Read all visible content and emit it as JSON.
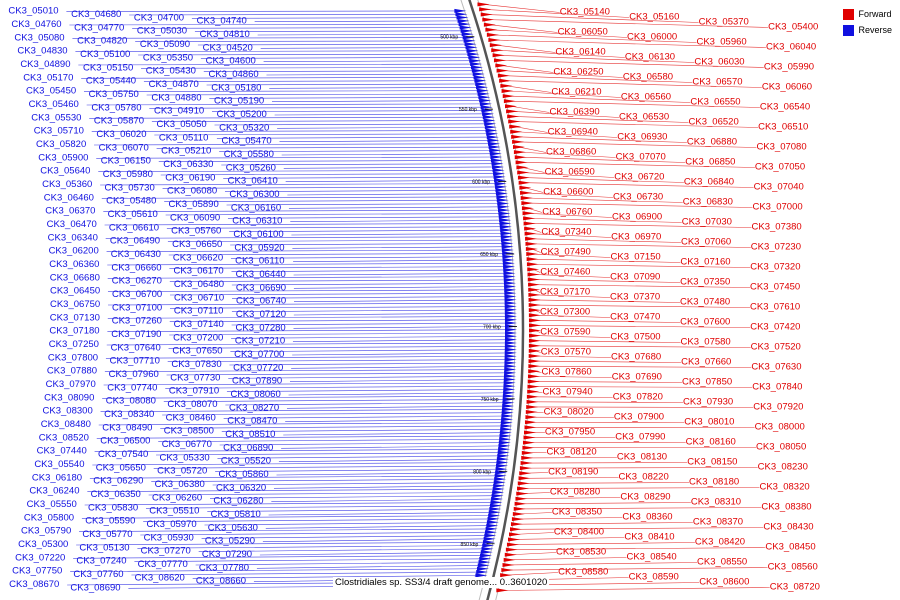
{
  "caption": "Clostridiales sp. SS3/4 draft genome... 0..3601020",
  "legend": [
    {
      "label": "Forward",
      "color": "#e00000"
    },
    {
      "label": "Reverse",
      "color": "#1010e0"
    }
  ],
  "colors": {
    "forward": "#e00000",
    "reverse": "#1010e0",
    "axis": "#888888"
  },
  "scale_ticks": [
    "500 kbp",
    "550 kbp",
    "600 kbp",
    "650 kbp",
    "700 kbp",
    "750 kbp",
    "800 kbp",
    "850 kbp"
  ],
  "left_labels": [
    "CK3_05010",
    "CK3_04680",
    "CK3_04700",
    "CK3_04740",
    "CK3_04760",
    "CK3_04770",
    "CK3_05030",
    "CK3_04810",
    "CK3_05080",
    "CK3_04820",
    "CK3_05090",
    "CK3_04520",
    "CK3_04830",
    "CK3_05100",
    "CK3_05350",
    "CK3_04600",
    "CK3_04890",
    "CK3_05150",
    "CK3_05430",
    "CK3_04860",
    "CK3_05170",
    "CK3_05440",
    "CK3_04870",
    "CK3_05180",
    "CK3_05450",
    "CK3_05750",
    "CK3_04880",
    "CK3_05190",
    "CK3_05460",
    "CK3_05780",
    "CK3_04910",
    "CK3_05200",
    "CK3_05530",
    "CK3_05870",
    "CK3_05050",
    "CK3_05320",
    "CK3_05710",
    "CK3_06020",
    "CK3_05110",
    "CK3_05470",
    "CK3_05820",
    "CK3_06070",
    "CK3_05210",
    "CK3_05580",
    "CK3_05900",
    "CK3_06150",
    "CK3_06330",
    "CK3_05260",
    "CK3_05640",
    "CK3_05980",
    "CK3_06190",
    "CK3_06410",
    "CK3_05360",
    "CK3_05730",
    "CK3_06080",
    "CK3_06300",
    "CK3_06460",
    "CK3_05480",
    "CK3_05890",
    "CK3_06160",
    "CK3_06370",
    "CK3_05610",
    "CK3_06090",
    "CK3_06310",
    "CK3_06470",
    "CK3_06610",
    "CK3_05760",
    "CK3_06100",
    "CK3_06340",
    "CK3_06490",
    "CK3_06650",
    "CK3_05920",
    "CK3_06200",
    "CK3_06430",
    "CK3_06620",
    "CK3_06110",
    "CK3_06360",
    "CK3_06660",
    "CK3_06170",
    "CK3_06440",
    "CK3_06680",
    "CK3_06270",
    "CK3_06480",
    "CK3_06690",
    "CK3_06450",
    "CK3_06700",
    "CK3_06710",
    "CK3_06740",
    "CK3_06750",
    "CK3_07100",
    "CK3_07110",
    "CK3_07120",
    "CK3_07130",
    "CK3_07260",
    "CK3_07140",
    "CK3_07280",
    "CK3_07180",
    "CK3_07190",
    "CK3_07200",
    "CK3_07210",
    "CK3_07250",
    "CK3_07640",
    "CK3_07650",
    "CK3_07700",
    "CK3_07800",
    "CK3_07710",
    "CK3_07830",
    "CK3_07720",
    "CK3_07880",
    "CK3_07960",
    "CK3_07730",
    "CK3_07890",
    "CK3_07970",
    "CK3_07740",
    "CK3_07910",
    "CK3_08060",
    "CK3_08090",
    "CK3_08080",
    "CK3_08070",
    "CK3_08270",
    "CK3_08300",
    "CK3_08340",
    "CK3_08460",
    "CK3_08470",
    "CK3_08480",
    "CK3_08490",
    "CK3_08500",
    "CK3_08510",
    "CK3_08520",
    "CK3_06500",
    "CK3_06770",
    "CK3_06890",
    "CK3_07440",
    "CK3_07540",
    "CK3_05330",
    "CK3_05520",
    "CK3_05540",
    "CK3_05650",
    "CK3_05720",
    "CK3_05860",
    "CK3_06180",
    "CK3_06290",
    "CK3_06380",
    "CK3_06320",
    "CK3_06240",
    "CK3_06350",
    "CK3_06260",
    "CK3_06280",
    "CK3_05550",
    "CK3_05830",
    "CK3_05510",
    "CK3_05810",
    "CK3_05800",
    "CK3_05590",
    "CK3_05970",
    "CK3_05630",
    "CK3_05790",
    "CK3_05770",
    "CK3_05930",
    "CK3_05290",
    "CK3_05300",
    "CK3_05130",
    "CK3_07270",
    "CK3_07290",
    "CK3_07220",
    "CK3_07240",
    "CK3_07770",
    "CK3_07780",
    "CK3_07750",
    "CK3_07760",
    "CK3_08620",
    "CK3_08660",
    "CK3_08670",
    "CK3_08690"
  ],
  "right_labels": [
    "CK3_05140",
    "CK3_05160",
    "CK3_05370",
    "CK3_05400",
    "CK3_06050",
    "CK3_06000",
    "CK3_05960",
    "CK3_06040",
    "CK3_06140",
    "CK3_06130",
    "CK3_06030",
    "CK3_05990",
    "CK3_06250",
    "CK3_06580",
    "CK3_06570",
    "CK3_06060",
    "CK3_06210",
    "CK3_06560",
    "CK3_06550",
    "CK3_06540",
    "CK3_06390",
    "CK3_06530",
    "CK3_06520",
    "CK3_06510",
    "CK3_06940",
    "CK3_06930",
    "CK3_06880",
    "CK3_07080",
    "CK3_06860",
    "CK3_07070",
    "CK3_06850",
    "CK3_07050",
    "CK3_06590",
    "CK3_06720",
    "CK3_06840",
    "CK3_07040",
    "CK3_06600",
    "CK3_06730",
    "CK3_06830",
    "CK3_07000",
    "CK3_06760",
    "CK3_06900",
    "CK3_07030",
    "CK3_07380",
    "CK3_07340",
    "CK3_06970",
    "CK3_07060",
    "CK3_07230",
    "CK3_07490",
    "CK3_07150",
    "CK3_07160",
    "CK3_07320",
    "CK3_07460",
    "CK3_07090",
    "CK3_07350",
    "CK3_07450",
    "CK3_07170",
    "CK3_07370",
    "CK3_07480",
    "CK3_07610",
    "CK3_07300",
    "CK3_07470",
    "CK3_07600",
    "CK3_07420",
    "CK3_07590",
    "CK3_07500",
    "CK3_07580",
    "CK3_07520",
    "CK3_07570",
    "CK3_07680",
    "CK3_07660",
    "CK3_07630",
    "CK3_07860",
    "CK3_07690",
    "CK3_07850",
    "CK3_07840",
    "CK3_07940",
    "CK3_07820",
    "CK3_07930",
    "CK3_07920",
    "CK3_08020",
    "CK3_07900",
    "CK3_08010",
    "CK3_08000",
    "CK3_07950",
    "CK3_07990",
    "CK3_08160",
    "CK3_08050",
    "CK3_08120",
    "CK3_08130",
    "CK3_08150",
    "CK3_08230",
    "CK3_08190",
    "CK3_08220",
    "CK3_08180",
    "CK3_08320",
    "CK3_08280",
    "CK3_08290",
    "CK3_08310",
    "CK3_08380",
    "CK3_08350",
    "CK3_08360",
    "CK3_08370",
    "CK3_08430",
    "CK3_08400",
    "CK3_08410",
    "CK3_08420",
    "CK3_08450",
    "CK3_08530",
    "CK3_08540",
    "CK3_08550",
    "CK3_08560",
    "CK3_08580",
    "CK3_08590",
    "CK3_08600",
    "CK3_08720"
  ]
}
